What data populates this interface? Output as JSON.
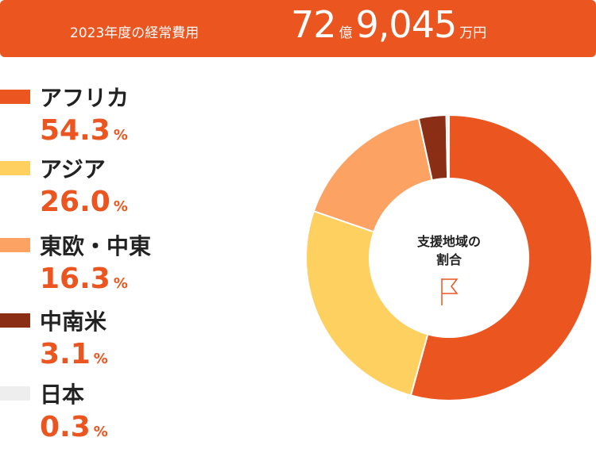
{
  "header": {
    "label": "2023年度の経常費用",
    "amount_oku": "72",
    "unit_oku": "億",
    "amount_man": "9,045",
    "unit_man": "万円"
  },
  "chart_data": {
    "type": "pie",
    "center_label": [
      "支援地域の",
      "割合"
    ],
    "unit": "%",
    "series": [
      {
        "name": "アフリカ",
        "value": 54.3,
        "display": "54.3",
        "color": "#ea5520"
      },
      {
        "name": "アジア",
        "value": 26.0,
        "display": "26.0",
        "color": "#fdd060"
      },
      {
        "name": "東欧・中東",
        "value": 16.3,
        "display": "16.3",
        "color": "#fca363"
      },
      {
        "name": "中南米",
        "value": 3.1,
        "display": "3.1",
        "color": "#8a2e16"
      },
      {
        "name": "日本",
        "value": 0.3,
        "display": "0.3",
        "color": "#eeeeee"
      }
    ],
    "accent": "#ea5520"
  }
}
